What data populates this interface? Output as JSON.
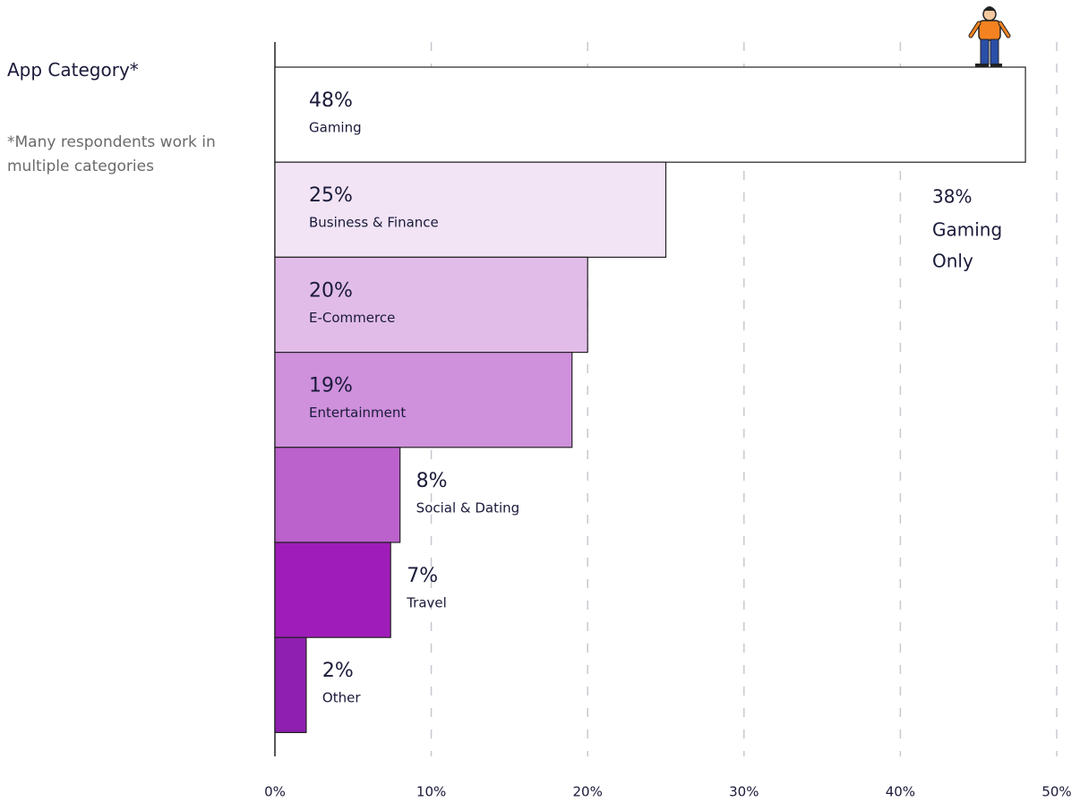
{
  "chart_data": {
    "type": "hbar",
    "title": "App Category*",
    "subtitle": "*Many respondents work in multiple categories",
    "categories": [
      "Gaming",
      "Business & Finance",
      "E-Commerce",
      "Entertainment",
      "Social & Dating",
      "Travel",
      "Other"
    ],
    "values": [
      48,
      25,
      20,
      19,
      8,
      7.4,
      2
    ],
    "value_labels": [
      "48%",
      "25%",
      "20%",
      "19%",
      "8%",
      "7%",
      "2%"
    ],
    "colors": [
      "#ffffff",
      "#f2e4f5",
      "#e1bce8",
      "#cf90dc",
      "#bb62cc",
      "#a01cba",
      "#8e1fb0"
    ],
    "xlim": [
      0,
      50
    ],
    "xticks": [
      {
        "value": 0,
        "label": "0%"
      },
      {
        "value": 10,
        "label": "10%"
      },
      {
        "value": 20,
        "label": "20%"
      },
      {
        "value": 30,
        "label": "30%"
      },
      {
        "value": 40,
        "label": "40%"
      },
      {
        "value": 50,
        "label": "50%"
      }
    ],
    "grid": true,
    "annotation": {
      "label": "38%",
      "lines": [
        "Gaming",
        "Only"
      ]
    }
  }
}
